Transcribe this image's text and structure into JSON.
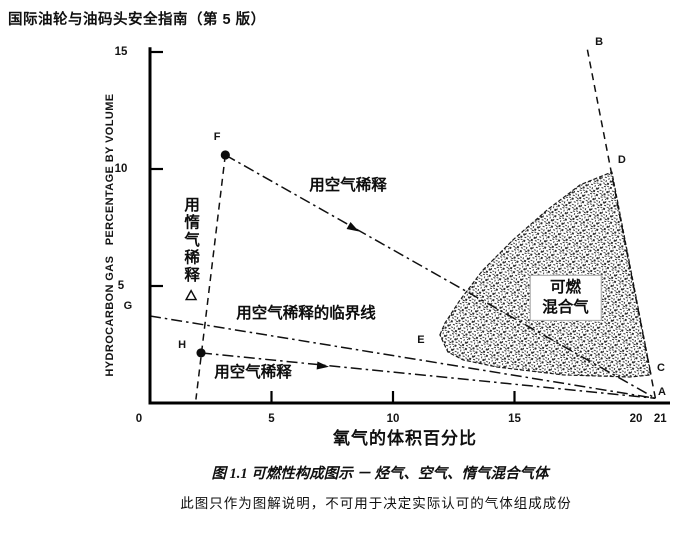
{
  "header": {
    "title": "国际油轮与油码头安全指南（第 5 版）"
  },
  "figure": {
    "caption_line1": "图 1.1 可燃性构成图示 － 烃气、空气、惰气混合气体",
    "caption_line2": "此图只作为图解说明，不可用于决定实际认可的气体组成成份"
  },
  "chart_data": {
    "type": "line",
    "title": "图 1.1 可燃性构成图示 － 烃气、空气、惰气混合气体",
    "xlabel": "氧气的体积百分比",
    "ylabel": "HYDROCARBON GAS   PERCENTAGE BY VOLUME",
    "xlim": [
      0,
      21.4
    ],
    "ylim": [
      0,
      15.2
    ],
    "grid": false,
    "x_tick_labels": [
      {
        "v": 0,
        "t": "0",
        "dx": -11
      },
      {
        "v": 5,
        "t": "5"
      },
      {
        "v": 10,
        "t": "10"
      },
      {
        "v": 15,
        "t": "15"
      },
      {
        "v": 20,
        "t": "20"
      },
      {
        "v": 21,
        "t": "21"
      }
    ],
    "x_tick_marks": [
      5,
      10,
      15
    ],
    "y_tick_labels": [
      {
        "v": 5,
        "t": "5"
      },
      {
        "v": 10,
        "t": "10"
      },
      {
        "v": 15,
        "t": "15"
      }
    ],
    "y_tick_marks": [
      5,
      10,
      15
    ],
    "points": {
      "A": [
        20.8,
        0.2
      ],
      "B": [
        18.0,
        15.1
      ],
      "C": [
        20.6,
        1.2
      ],
      "D": [
        19.0,
        9.9
      ],
      "E": [
        12.0,
        2.9
      ],
      "F": [
        3.1,
        10.6
      ],
      "G": [
        0,
        3.72
      ],
      "H": [
        2.1,
        2.14
      ]
    },
    "point_labels": [
      {
        "text": "F",
        "x": 2.76,
        "y": 11.37
      },
      {
        "text": "B",
        "x": 18.48,
        "y": 15.43
      },
      {
        "text": "D",
        "x": 19.42,
        "y": 10.38
      },
      {
        "text": "C",
        "x": 21.03,
        "y": 1.5
      },
      {
        "text": "A",
        "x": 21.07,
        "y": 0.47
      },
      {
        "text": "E",
        "x": 11.15,
        "y": 2.69
      },
      {
        "text": "G",
        "x": -0.91,
        "y": 4.15
      },
      {
        "text": "H",
        "x": 1.32,
        "y": 2.48
      }
    ],
    "lines": [
      {
        "name": "inert_gas_dilution",
        "style": "dash",
        "points": [
          [
            3.1,
            10.6
          ],
          [
            1.89,
            0.15
          ]
        ]
      },
      {
        "name": "air_dilution_upper",
        "style": "dashdot",
        "points": [
          [
            3.1,
            10.6
          ],
          [
            20.8,
            0.2
          ]
        ]
      },
      {
        "name": "air_dilution_lower",
        "style": "dashdot",
        "points": [
          [
            2.1,
            2.14
          ],
          [
            20.8,
            0.2
          ]
        ]
      },
      {
        "name": "critical_dilution",
        "style": "dashdot",
        "points": [
          [
            0,
            3.72
          ],
          [
            20.8,
            0.2
          ]
        ]
      },
      {
        "name": "hydrocarbon_air",
        "style": "dash",
        "points": [
          [
            18.0,
            15.1
          ],
          [
            20.8,
            0.2
          ]
        ]
      }
    ],
    "flammable_region": {
      "boundary": [
        [
          11.93,
          2.91
        ],
        [
          12.14,
          3.42
        ],
        [
          12.76,
          4.4
        ],
        [
          13.7,
          5.68
        ],
        [
          14.94,
          6.97
        ],
        [
          16.34,
          8.25
        ],
        [
          17.7,
          9.32
        ],
        [
          19.01,
          9.87
        ],
        [
          20.62,
          1.2
        ],
        [
          19.75,
          1.11
        ],
        [
          17.0,
          1.2
        ],
        [
          14.28,
          1.54
        ],
        [
          12.88,
          1.84
        ],
        [
          12.26,
          2.18
        ]
      ]
    },
    "region_labels": [
      {
        "text": "用空气稀释",
        "x": 8.15,
        "y": 9.36,
        "style": "plain"
      },
      {
        "text": "用惰气稀释",
        "x": 1.65,
        "y": 6.95,
        "style": "vertical"
      },
      {
        "text": "用空气稀释的临界线",
        "x": 6.42,
        "y": 3.89,
        "style": "plain"
      },
      {
        "text": "用空气稀释",
        "x": 4.24,
        "y": 1.37,
        "style": "plain"
      },
      {
        "text": "可燃\n混合气",
        "x": 17.1,
        "y": 4.5,
        "style": "boxed"
      }
    ],
    "markers": [
      {
        "shape": "dot",
        "xy": [
          3.1,
          10.6
        ]
      },
      {
        "shape": "dot",
        "xy": [
          2.1,
          2.14
        ]
      },
      {
        "shape": "arrow",
        "xy": [
          8.35,
          7.48
        ],
        "line": "air_dilution_upper"
      },
      {
        "shape": "arrow",
        "xy": [
          7.08,
          1.58
        ],
        "line": "air_dilution_lower"
      },
      {
        "shape": "triangle",
        "xy": [
          1.69,
          4.57
        ]
      }
    ]
  }
}
